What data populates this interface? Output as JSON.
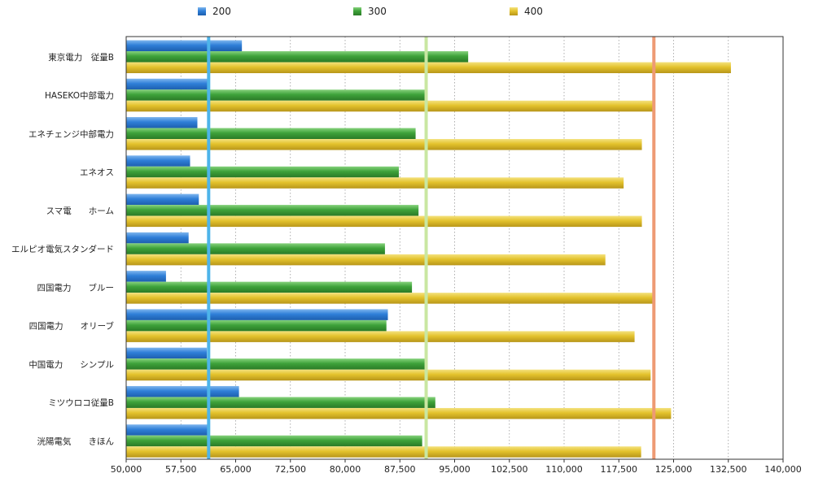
{
  "chart_data": {
    "type": "bar",
    "orientation": "horizontal",
    "title": "",
    "xlabel": "",
    "ylabel": "",
    "xlim": [
      50000,
      140000
    ],
    "x_ticks": [
      "50,000",
      "57,500",
      "65,000",
      "72,500",
      "80,000",
      "87,500",
      "95,000",
      "102,500",
      "110,000",
      "117,500",
      "125,000",
      "132,500",
      "140,000"
    ],
    "grid": "vertical dotted",
    "legend_position": "top",
    "categories": [
      "東京電力　従量B",
      "HASEKO中部電力",
      "エネチェンジ中部電力",
      "エネオス",
      "スマ電　　ホーム",
      "エルピオ電気スタンダード",
      "四国電力　　ブルー",
      "四国電力　　オリーブ",
      "中国電力　　シンプル",
      "ミツウロコ従量B",
      "洸陽電気　　きほん"
    ],
    "series": [
      {
        "name": "200",
        "color": "#2f7fd8",
        "values": [
          65800,
          61400,
          59700,
          58700,
          59900,
          58500,
          55400,
          85800,
          61000,
          65400,
          61400
        ]
      },
      {
        "name": "300",
        "color": "#3ea23a",
        "values": [
          96800,
          91100,
          89600,
          87300,
          90000,
          85400,
          89100,
          85600,
          91100,
          92300,
          90500
        ]
      },
      {
        "name": "400",
        "color": "#e3c22c",
        "values": [
          132800,
          122300,
          120600,
          118100,
          120600,
          115600,
          122300,
          119600,
          121800,
          124600,
          120500
        ]
      }
    ],
    "reference_lines": [
      {
        "value": 61300,
        "color": "#4db4ea"
      },
      {
        "value": 91100,
        "color": "#c9e7a2"
      },
      {
        "value": 122300,
        "color": "#ee9a74"
      }
    ]
  }
}
